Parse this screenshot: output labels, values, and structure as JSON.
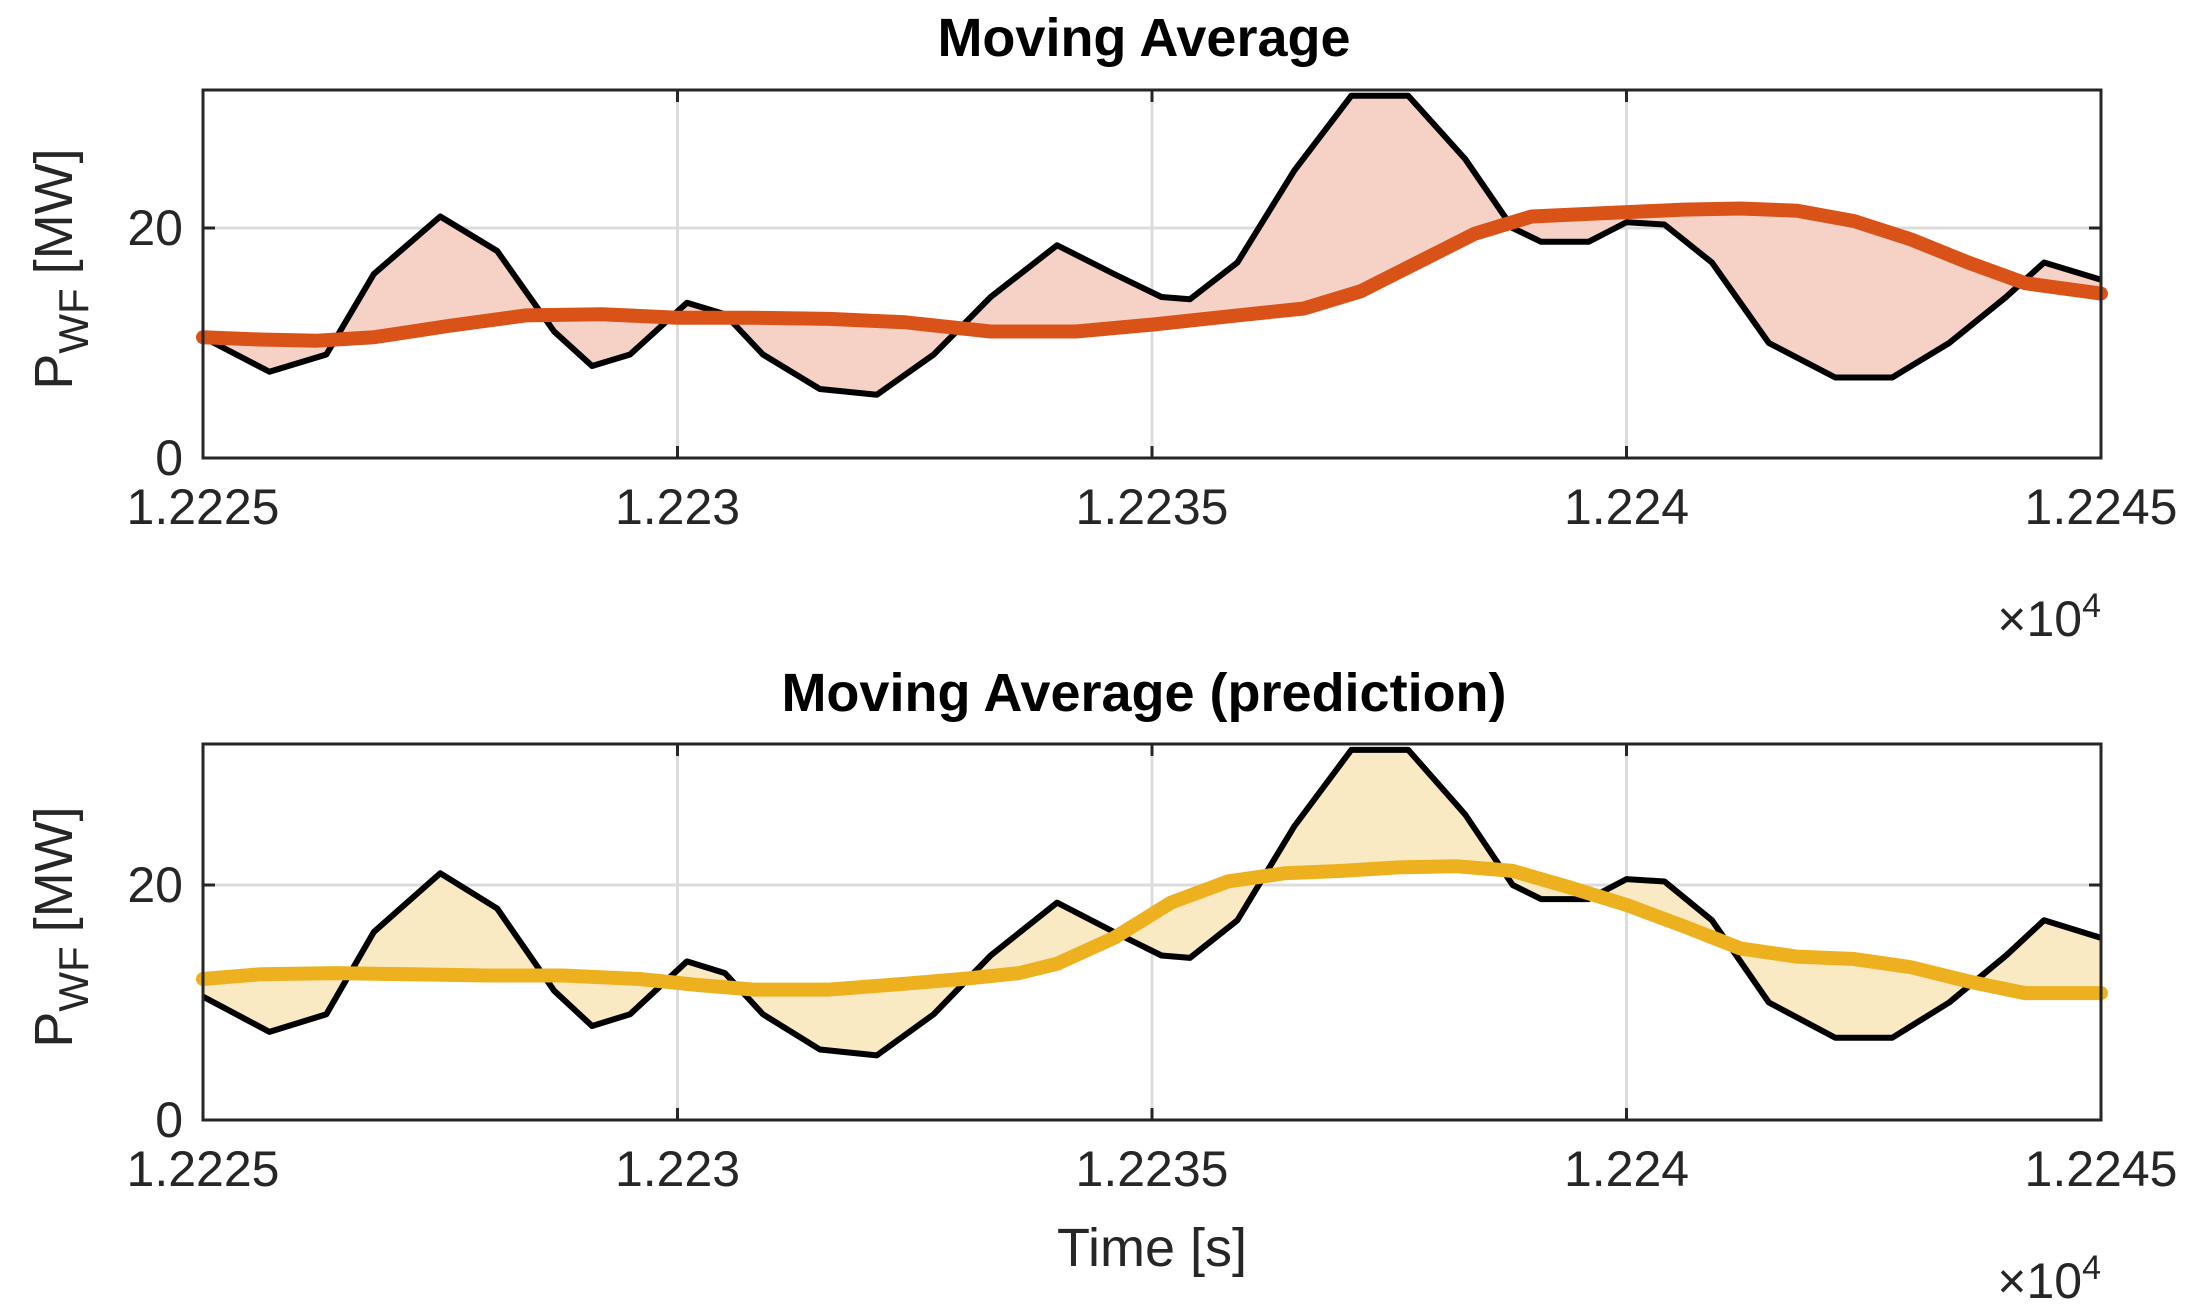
{
  "chart_data": [
    {
      "type": "line",
      "title": "Moving Average",
      "xlabel": "",
      "ylabel": "P",
      "ylabel_sub": "WF",
      "ylabel_unit": "[MW]",
      "xlim": [
        1.2225,
        1.2245
      ],
      "ylim": [
        0,
        32
      ],
      "xticks": [
        1.2225,
        1.223,
        1.2235,
        1.224,
        1.2245
      ],
      "xtick_labels": [
        "1.2225",
        "1.223",
        "1.2235",
        "1.224",
        "1.2245"
      ],
      "yticks": [
        0,
        20
      ],
      "ytick_labels": [
        "0",
        "20"
      ],
      "x_multiplier": {
        "base": "×10",
        "exponent": "4"
      },
      "grid": true,
      "fill_color": "#f6d2c6",
      "series": [
        {
          "name": "P_WF",
          "color": "#000000",
          "x": [
            1.2225,
            1.22257,
            1.22263,
            1.22268,
            1.22275,
            1.22281,
            1.22287,
            1.22291,
            1.22295,
            1.22301,
            1.22305,
            1.22309,
            1.22315,
            1.22321,
            1.22327,
            1.22333,
            1.2234,
            1.22346,
            1.22351,
            1.22354,
            1.22359,
            1.22365,
            1.22371,
            1.22377,
            1.22383,
            1.22388,
            1.22391,
            1.22396,
            1.224,
            1.22404,
            1.22409,
            1.22415,
            1.22422,
            1.22428,
            1.22434,
            1.2244,
            1.22444,
            1.2245
          ],
          "values": [
            10.5,
            7.5,
            9,
            16,
            21,
            18,
            11,
            8,
            9,
            13.5,
            12.5,
            9,
            6,
            5.5,
            9,
            14,
            18.5,
            16,
            14,
            13.8,
            17,
            25,
            31.5,
            31.5,
            26,
            20,
            18.8,
            18.8,
            20.5,
            20.3,
            17,
            10,
            7,
            7,
            10,
            14,
            17,
            15.5
          ]
        },
        {
          "name": "Moving average",
          "color": "#d95319",
          "x": [
            1.2225,
            1.22256,
            1.22262,
            1.22268,
            1.22276,
            1.22284,
            1.22292,
            1.223,
            1.22308,
            1.22316,
            1.22324,
            1.22333,
            1.22342,
            1.2235,
            1.22359,
            1.22366,
            1.22372,
            1.22378,
            1.22384,
            1.2239,
            1.22398,
            1.22406,
            1.22412,
            1.22418,
            1.22424,
            1.2243,
            1.22436,
            1.22442,
            1.2245
          ],
          "values": [
            10.5,
            10.3,
            10.2,
            10.5,
            11.5,
            12.4,
            12.5,
            12.2,
            12.2,
            12.1,
            11.8,
            11.0,
            11.0,
            11.6,
            12.4,
            13.0,
            14.5,
            17.0,
            19.5,
            21.0,
            21.3,
            21.6,
            21.7,
            21.5,
            20.6,
            19.0,
            17.0,
            15.2,
            14.3
          ]
        }
      ]
    },
    {
      "type": "line",
      "title": "Moving Average (prediction)",
      "xlabel": "Time [s]",
      "ylabel": "P",
      "ylabel_sub": "WF",
      "ylabel_unit": "[MW]",
      "xlim": [
        1.2225,
        1.2245
      ],
      "ylim": [
        0,
        32
      ],
      "xticks": [
        1.2225,
        1.223,
        1.2235,
        1.224,
        1.2245
      ],
      "xtick_labels": [
        "1.2225",
        "1.223",
        "1.2235",
        "1.224",
        "1.2245"
      ],
      "yticks": [
        0,
        20
      ],
      "ytick_labels": [
        "0",
        "20"
      ],
      "x_multiplier": {
        "base": "×10",
        "exponent": "4"
      },
      "grid": true,
      "fill_color": "#f9eac4",
      "series": [
        {
          "name": "P_WF",
          "color": "#000000",
          "x": [
            1.2225,
            1.22257,
            1.22263,
            1.22268,
            1.22275,
            1.22281,
            1.22287,
            1.22291,
            1.22295,
            1.22301,
            1.22305,
            1.22309,
            1.22315,
            1.22321,
            1.22327,
            1.22333,
            1.2234,
            1.22346,
            1.22351,
            1.22354,
            1.22359,
            1.22365,
            1.22371,
            1.22377,
            1.22383,
            1.22388,
            1.22391,
            1.22396,
            1.224,
            1.22404,
            1.22409,
            1.22415,
            1.22422,
            1.22428,
            1.22434,
            1.2244,
            1.22444,
            1.2245
          ],
          "values": [
            10.5,
            7.5,
            9,
            16,
            21,
            18,
            11,
            8,
            9,
            13.5,
            12.5,
            9,
            6,
            5.5,
            9,
            14,
            18.5,
            16,
            14,
            13.8,
            17,
            25,
            31.5,
            31.5,
            26,
            20,
            18.8,
            18.8,
            20.5,
            20.3,
            17,
            10,
            7,
            7,
            10,
            14,
            17,
            15.5
          ]
        },
        {
          "name": "Moving average (prediction)",
          "color": "#edb120",
          "x": [
            1.2225,
            1.22256,
            1.22264,
            1.22272,
            1.2228,
            1.22288,
            1.22296,
            1.22302,
            1.22308,
            1.22316,
            1.22324,
            1.2233,
            1.22336,
            1.2234,
            1.22346,
            1.22352,
            1.22358,
            1.22364,
            1.2237,
            1.22376,
            1.22382,
            1.22388,
            1.22394,
            1.224,
            1.22406,
            1.22412,
            1.22418,
            1.22424,
            1.2243,
            1.22436,
            1.22442,
            1.2245
          ],
          "values": [
            12.0,
            12.4,
            12.5,
            12.4,
            12.3,
            12.3,
            12.0,
            11.5,
            11.1,
            11.1,
            11.6,
            12.0,
            12.5,
            13.3,
            15.5,
            18.5,
            20.3,
            21.0,
            21.2,
            21.5,
            21.6,
            21.2,
            19.8,
            18.3,
            16.5,
            14.6,
            13.9,
            13.7,
            13.0,
            11.8,
            10.8,
            10.8
          ]
        }
      ]
    }
  ]
}
